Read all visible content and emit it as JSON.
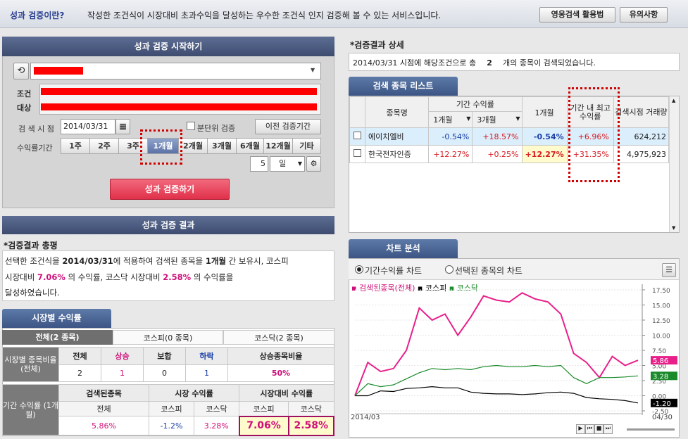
{
  "topbar": {
    "title": "성과 검증이란?",
    "description": "작성한 조건식이 시장대비 초과수익을 달성하는 우수한 조건식 인지 검증해 볼 수 있는 서비스입니다.",
    "btn_video": "영웅검색 활용법",
    "btn_notice": "유의사항"
  },
  "start_panel": {
    "header": "성과 검증 시작하기",
    "condition_label": "조건",
    "target_label": "대상",
    "date_label": "검 색 시 점",
    "date_value": "2014/03/31",
    "split_check_label": "분단위 검증",
    "prev_period_btn": "이전 검증기간",
    "period_label": "수익률기간",
    "periods": [
      "1주",
      "2주",
      "3주",
      "1개월",
      "2개월",
      "3개월",
      "6개월",
      "12개월",
      "기타"
    ],
    "selected_period": "1개월",
    "day_value": "5",
    "day_unit": "일",
    "run_btn": "성과 검증하기"
  },
  "result_panel": {
    "header": "성과 검증 결과",
    "summary_title": "*검증결과 총평",
    "summary_line1_a": "선택한 조건식을",
    "summary_date": "2014/03/31",
    "summary_line1_b": "에 적용하여 검색된 종목을",
    "summary_period": "1개월",
    "summary_line1_c": "간 보유시, 코스피",
    "summary_line2_a": "시장대비",
    "summary_kospi": "7.06%",
    "summary_line2_b": "의 수익률, 코스닥 시장대비",
    "summary_kosdaq": "2.58%",
    "summary_line2_c": "의 수익률을",
    "summary_line3": "달성하였습니다."
  },
  "market_returns": {
    "tab": "시장별 수익률",
    "subtabs": [
      "전체(2 종목)",
      "코스피(0 종목)",
      "코스닥(2 종목)"
    ],
    "row1_label": "시장별 종목비율 (전체)",
    "headers1": [
      "전체",
      "상승",
      "보합",
      "하락",
      "상승종목비율"
    ],
    "values1": [
      "2",
      "1",
      "0",
      "1",
      "50%"
    ],
    "row2_label": "기간 수익률 (1개월)",
    "group_headers": [
      "검색된종목",
      "시장 수익률",
      "시장대비 수익률"
    ],
    "sub_headers": [
      "전체",
      "코스피",
      "코스닥",
      "코스피",
      "코스닥"
    ],
    "values2": [
      "5.86%",
      "-1.2%",
      "3.28%",
      "7.06%",
      "2.58%"
    ]
  },
  "detail": {
    "title": "*검증결과 상세",
    "msg_a": "2014/03/31 시점에 해당조건으로 총",
    "count": "2",
    "msg_b": "개의 종목이 검색되었습니다.",
    "list_tab": "검색 종목 리스트",
    "col_name": "종목명",
    "col_period": "기간 수익률",
    "col_1m": "1개월",
    "col_3m": "3개월",
    "col_1m_b": "1개월",
    "col_max": "기간 내 최고수익률",
    "col_volume": "검색시점 거래량",
    "rows": [
      {
        "name": "에이치엘비",
        "r1": "-0.54%",
        "r3": "+18.57%",
        "r1b": "-0.54%",
        "max": "+6.96%",
        "vol": "624,212"
      },
      {
        "name": "한국전자인증",
        "r1": "+12.27%",
        "r3": "+0.25%",
        "r1b": "+12.27%",
        "max": "+31.35%",
        "vol": "4,975,923"
      }
    ]
  },
  "chart_panel": {
    "tab": "차트 분석",
    "radio1": "기간수익률 차트",
    "radio2": "선택된 종목의 차트",
    "legend": [
      "검색된종목(전체)",
      "코스피",
      "코스닥"
    ],
    "x_start": "2014/03",
    "x_end": "04/30",
    "badges": [
      "5.86",
      "3.28",
      "-1.20"
    ]
  },
  "chart_data": {
    "type": "line",
    "ylim": [
      -2.5,
      17.5
    ],
    "yticks": [
      "17.50",
      "15.00",
      "12.50",
      "10.00",
      "7.50",
      "5.00",
      "2.50",
      "0.00",
      "-2.50"
    ],
    "x_labels": [
      "2014/03",
      "04/30"
    ],
    "series": [
      {
        "name": "검색된종목(전체)",
        "color": "#e8208a",
        "values": [
          0,
          5.5,
          4,
          4.5,
          7.5,
          14.5,
          12.5,
          13.5,
          10,
          13,
          16.5,
          15.8,
          15.5,
          17,
          16,
          15.5,
          13.5,
          7,
          5.5,
          3,
          6.5,
          5,
          5.86
        ]
      },
      {
        "name": "코스피",
        "color": "#000000",
        "values": [
          0,
          0,
          0.8,
          0.7,
          1.2,
          1.3,
          1.5,
          1.3,
          1.3,
          0.6,
          0.4,
          0.3,
          0.3,
          0.2,
          0.3,
          0.5,
          0.6,
          0.4,
          -0.3,
          -0.5,
          -0.6,
          -0.8,
          -1.2
        ]
      },
      {
        "name": "코스닥",
        "color": "#1a8a2a",
        "values": [
          0,
          2,
          1.5,
          1.8,
          2.8,
          3.8,
          4.5,
          4.3,
          4.5,
          4.3,
          4.8,
          5,
          4.8,
          4.8,
          5,
          4.8,
          5,
          3,
          2,
          3,
          3,
          3.1,
          3.28
        ]
      }
    ]
  }
}
